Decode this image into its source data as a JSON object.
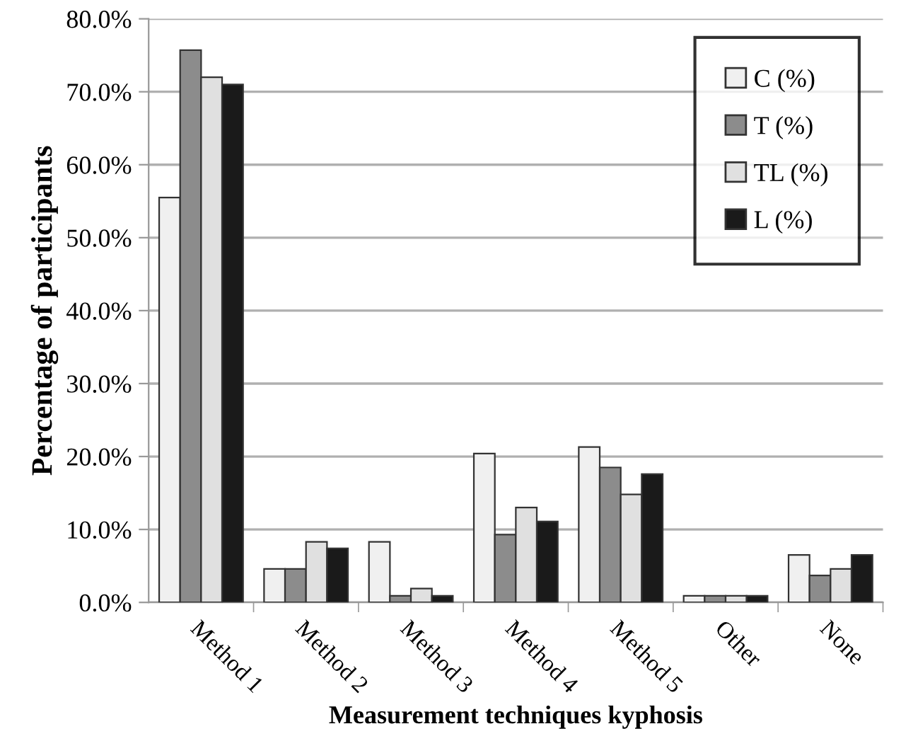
{
  "chart_data": {
    "type": "bar",
    "xlabel": "Measurement techniques kyphosis",
    "ylabel": "Percentage of participants",
    "categories": [
      "Method 1",
      "Method 2",
      "Method 3",
      "Method 4",
      "Method 5",
      "Other",
      "None"
    ],
    "series": [
      {
        "name": "C (%)",
        "color": "#f0f0f0",
        "values": [
          55.5,
          4.6,
          8.3,
          20.4,
          21.3,
          0.9,
          6.5
        ]
      },
      {
        "name": "T (%)",
        "color": "#8c8c8c",
        "values": [
          75.7,
          4.6,
          0.9,
          9.3,
          18.5,
          0.9,
          3.7
        ]
      },
      {
        "name": "TL (%)",
        "color": "#e0e0e0",
        "values": [
          72.0,
          8.3,
          1.9,
          13.0,
          14.8,
          0.9,
          4.6
        ]
      },
      {
        "name": "L (%)",
        "color": "#1a1a1a",
        "values": [
          71.0,
          7.4,
          0.9,
          11.1,
          17.6,
          0.9,
          6.5
        ]
      }
    ],
    "ylim": [
      0,
      80
    ],
    "yticks": [
      {
        "value": 0,
        "label": "0.0%"
      },
      {
        "value": 10,
        "label": "10.0%"
      },
      {
        "value": 20,
        "label": "20.0%"
      },
      {
        "value": 30,
        "label": "30.0%"
      },
      {
        "value": 40,
        "label": "40.0%"
      },
      {
        "value": 50,
        "label": "50.0%"
      },
      {
        "value": 60,
        "label": "60.0%"
      },
      {
        "value": 70,
        "label": "70.0%"
      },
      {
        "value": 80,
        "label": "80.0%"
      }
    ],
    "grid": "y",
    "legend": "top right"
  }
}
